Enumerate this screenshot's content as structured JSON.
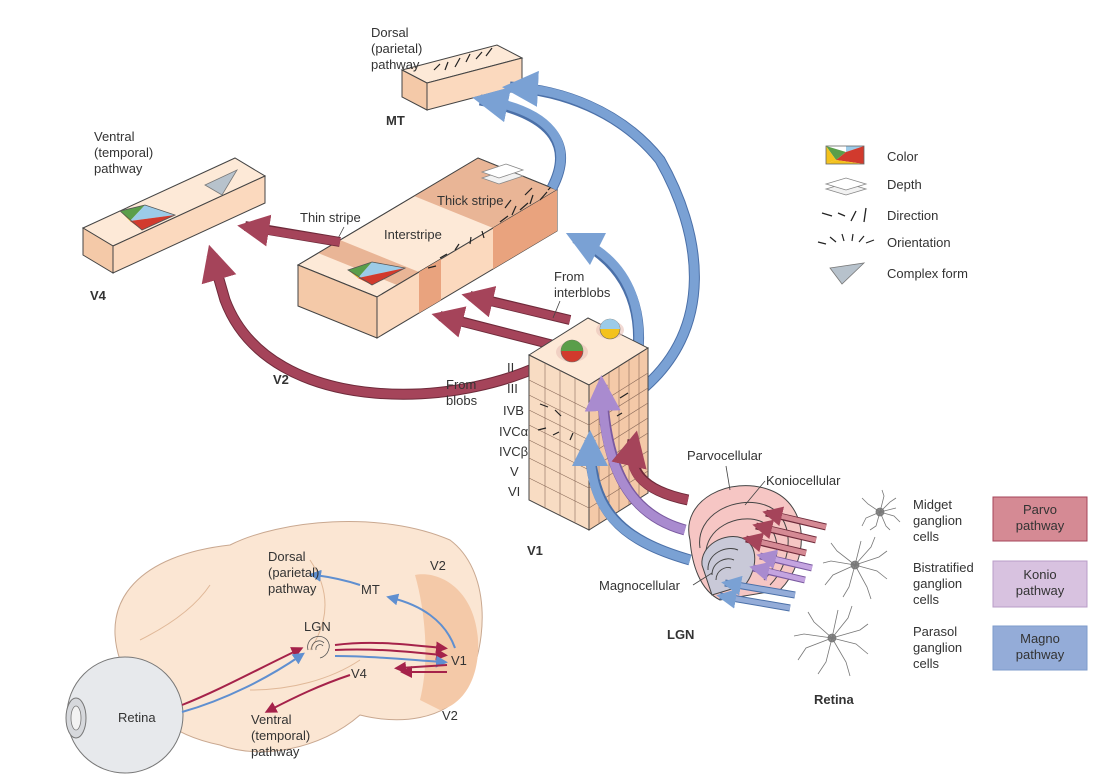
{
  "areas": {
    "mt": {
      "title": "MT",
      "pathway": [
        "Dorsal",
        "(parietal)",
        "pathway"
      ]
    },
    "v4": {
      "title": "V4",
      "pathway": [
        "Ventral",
        "(temporal)",
        "pathway"
      ]
    },
    "v2": {
      "title": "V2",
      "thin_stripe": "Thin stripe",
      "interstripe": "Interstripe",
      "thick_stripe": "Thick stripe"
    },
    "v1": {
      "title": "V1",
      "layers": [
        "II",
        "III",
        "IVB",
        "IVCα",
        "IVCβ",
        "V",
        "VI"
      ],
      "from_interblobs": [
        "From",
        "interblobs"
      ],
      "from_blobs": [
        "From",
        "blobs"
      ]
    },
    "lgn": {
      "title": "LGN",
      "parvocellular": "Parvocellular",
      "koniocellular": "Koniocellular",
      "magnocellular": "Magnocellular"
    }
  },
  "retina": {
    "title": "Retina",
    "cells": [
      {
        "label": [
          "Midget",
          "ganglion",
          "cells"
        ],
        "pathway": [
          "Parvo",
          "pathway"
        ],
        "color": "#c97e88",
        "fill": "#d58a94"
      },
      {
        "label": [
          "Bistratified",
          "ganglion",
          "cells"
        ],
        "pathway": [
          "Konio",
          "pathway"
        ],
        "color": "#b99cc7",
        "fill": "#d8c2e0"
      },
      {
        "label": [
          "Parasol",
          "ganglion",
          "cells"
        ],
        "pathway": [
          "Magno",
          "pathway"
        ],
        "color": "#7e9bcb",
        "fill": "#94acd8"
      }
    ]
  },
  "legend": {
    "items": [
      {
        "label": "Color",
        "icon": "color-icon"
      },
      {
        "label": "Depth",
        "icon": "depth-icon"
      },
      {
        "label": "Direction",
        "icon": "direction-icon"
      },
      {
        "label": "Orientation",
        "icon": "orientation-icon"
      },
      {
        "label": "Complex form",
        "icon": "complex-form-icon"
      }
    ]
  },
  "brain": {
    "dorsal": [
      "Dorsal",
      "(parietal)",
      "pathway"
    ],
    "ventral": [
      "Ventral",
      "(temporal)",
      "pathway"
    ],
    "mt": "MT",
    "lgn": "LGN",
    "v4": "V4",
    "v1": "V1",
    "v2_top": "V2",
    "v2_bottom": "V2",
    "retina": "Retina"
  },
  "colors": {
    "parvo": "#a5445a",
    "magno": "#7aa1d4",
    "konio": "#a98bcf",
    "tissue": "#f9dfc8",
    "tissue_dark": "#e9b596"
  }
}
